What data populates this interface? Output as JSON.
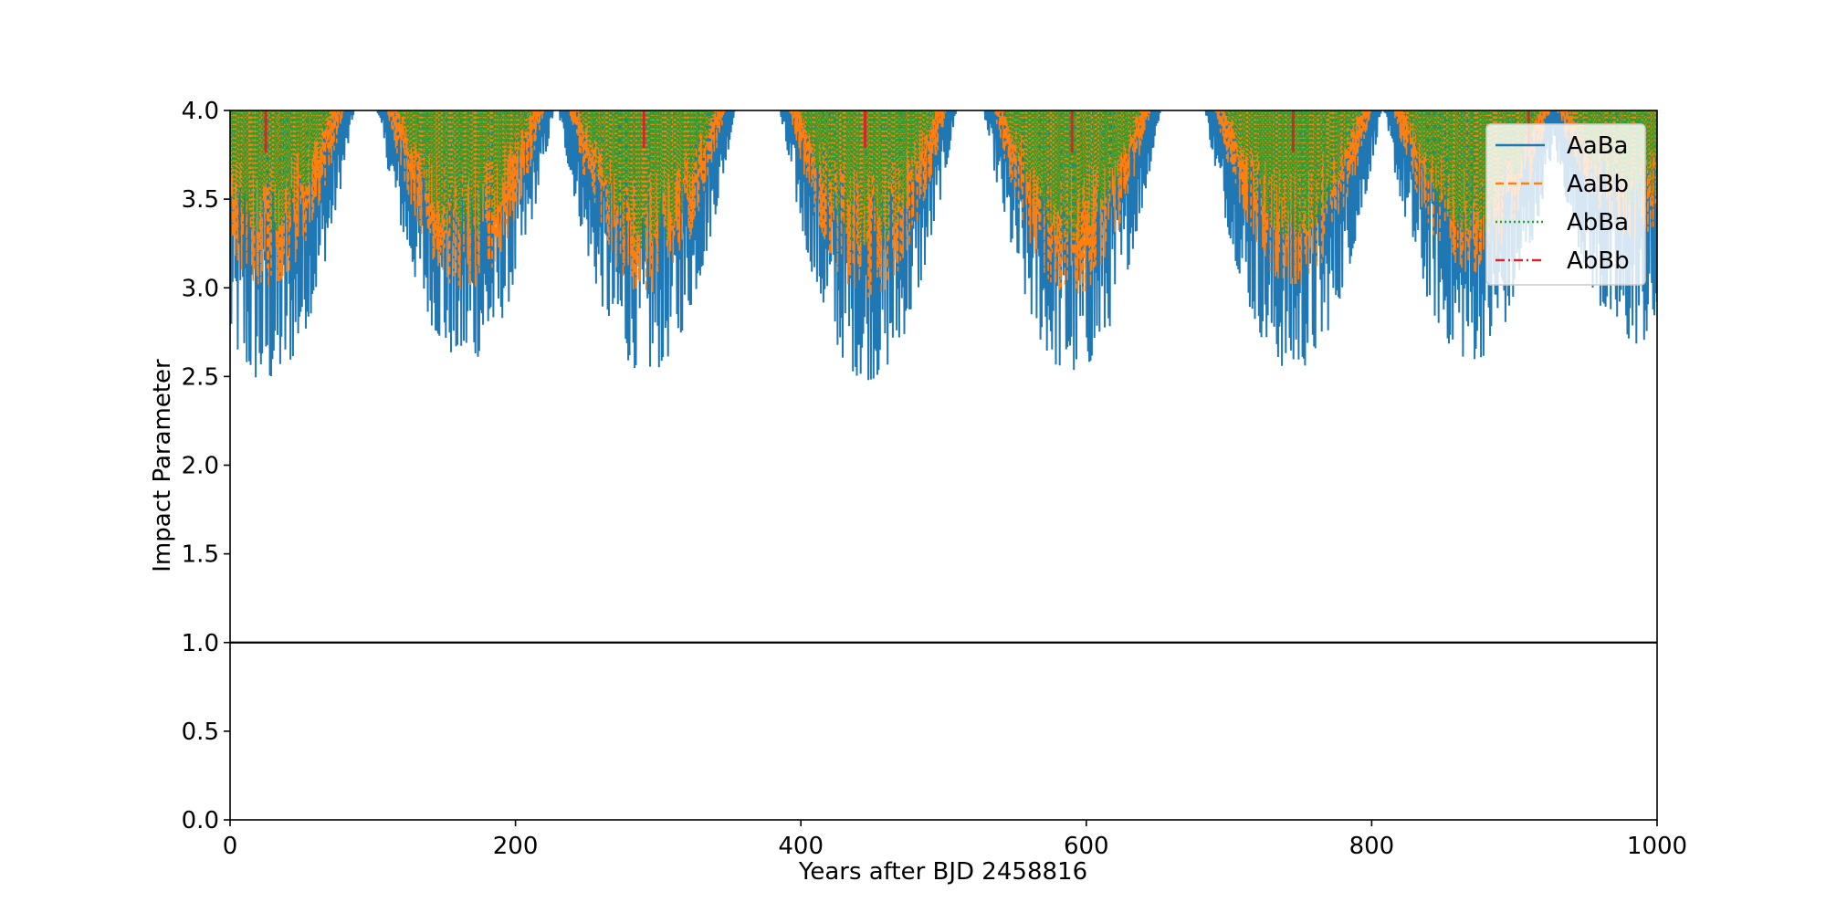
{
  "chart_data": {
    "type": "line",
    "title": "",
    "xlabel": "Years after BJD 2458816",
    "ylabel": "Impact Parameter",
    "xlim": [
      0,
      1000
    ],
    "ylim": [
      0,
      4.0
    ],
    "xticks": [
      0,
      200,
      400,
      600,
      800,
      1000
    ],
    "xtick_labels": [
      "0",
      "200",
      "400",
      "600",
      "800",
      "1000"
    ],
    "yticks": [
      0.0,
      0.5,
      1.0,
      1.5,
      2.0,
      2.5,
      3.0,
      3.5,
      4.0
    ],
    "ytick_labels": [
      "0.0",
      "0.5",
      "1.0",
      "1.5",
      "2.0",
      "2.5",
      "3.0",
      "3.5",
      "4.0"
    ],
    "grid": false,
    "legend_position": "top-right",
    "reference_line": {
      "y": 1.0,
      "color": "#000000"
    },
    "series": [
      {
        "name": "AaBa",
        "color": "#1f77b4",
        "style": "solid",
        "cycle_period_years": 140,
        "cycle_minima": [
          [
            25,
            2.45
          ],
          [
            165,
            2.58
          ],
          [
            292,
            2.52
          ],
          [
            447,
            2.48
          ],
          [
            590,
            2.51
          ],
          [
            745,
            2.53
          ],
          [
            870,
            2.59
          ],
          [
            985,
            2.68
          ]
        ]
      },
      {
        "name": "AaBb",
        "color": "#ff7f0e",
        "style": "dashed",
        "cycle_minima": [
          [
            25,
            3.0
          ],
          [
            165,
            2.98
          ],
          [
            292,
            2.96
          ],
          [
            447,
            2.93
          ],
          [
            590,
            2.95
          ],
          [
            745,
            3.01
          ],
          [
            870,
            3.08
          ],
          [
            985,
            3.28
          ]
        ]
      },
      {
        "name": "AbBa",
        "color": "#2ca02c",
        "style": "dotted",
        "cycle_minima": [
          [
            25,
            3.3
          ],
          [
            165,
            3.25
          ],
          [
            292,
            3.2
          ],
          [
            447,
            3.22
          ],
          [
            590,
            3.25
          ],
          [
            745,
            3.28
          ],
          [
            870,
            3.3
          ],
          [
            985,
            3.45
          ]
        ]
      },
      {
        "name": "AbBb",
        "color": "#d62728",
        "style": "dashdot",
        "spike_positions": [
          25,
          290,
          445,
          590,
          745,
          910
        ],
        "spike_min": 3.8
      }
    ]
  }
}
